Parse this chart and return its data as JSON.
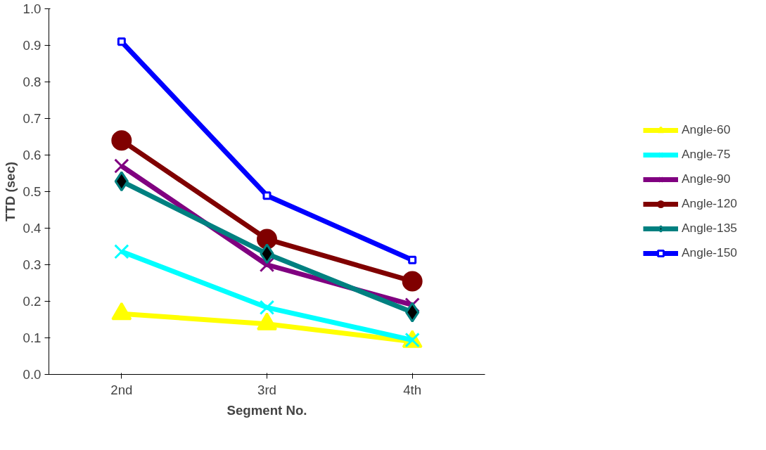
{
  "chart_data": {
    "type": "line",
    "xlabel": "Segment No.",
    "ylabel": "TTD (sec)",
    "categories": [
      "2nd",
      "3rd",
      "4th"
    ],
    "ylim": [
      0,
      1.0
    ],
    "yticks": [
      {
        "value": 0,
        "label": "0.0"
      },
      {
        "value": 0.1,
        "label": "0.1"
      },
      {
        "value": 0.2,
        "label": "0.2"
      },
      {
        "value": 0.3,
        "label": "0.3"
      },
      {
        "value": 0.4,
        "label": "0.4"
      },
      {
        "value": 0.5,
        "label": "0.5"
      },
      {
        "value": 0.6,
        "label": "0.6"
      },
      {
        "value": 0.7,
        "label": "0.7"
      },
      {
        "value": 0.8,
        "label": "0.8"
      },
      {
        "value": 0.9,
        "label": "0.9"
      },
      {
        "value": 1.0,
        "label": "1.0"
      }
    ],
    "grid": false,
    "legend": "right",
    "line_style": "solid",
    "series": [
      {
        "name": "Angle-60",
        "color": "#ffff00",
        "marker": "triangle",
        "values": [
          0.166,
          0.138,
          0.09
        ]
      },
      {
        "name": "Angle-75",
        "color": "#00ffff",
        "marker": "cross",
        "values": [
          0.336,
          0.183,
          0.094
        ]
      },
      {
        "name": "Angle-90",
        "color": "#800080",
        "marker": "cross",
        "values": [
          0.57,
          0.3,
          0.19
        ]
      },
      {
        "name": "Angle-120",
        "color": "#800000",
        "marker": "circle",
        "values": [
          0.64,
          0.37,
          0.255
        ]
      },
      {
        "name": "Angle-135",
        "color": "#008080",
        "marker": "diamond",
        "values": [
          0.528,
          0.33,
          0.17
        ]
      },
      {
        "name": "Angle-150",
        "color": "#0000ff",
        "marker": "square",
        "values": [
          0.91,
          0.489,
          0.313
        ]
      }
    ]
  }
}
